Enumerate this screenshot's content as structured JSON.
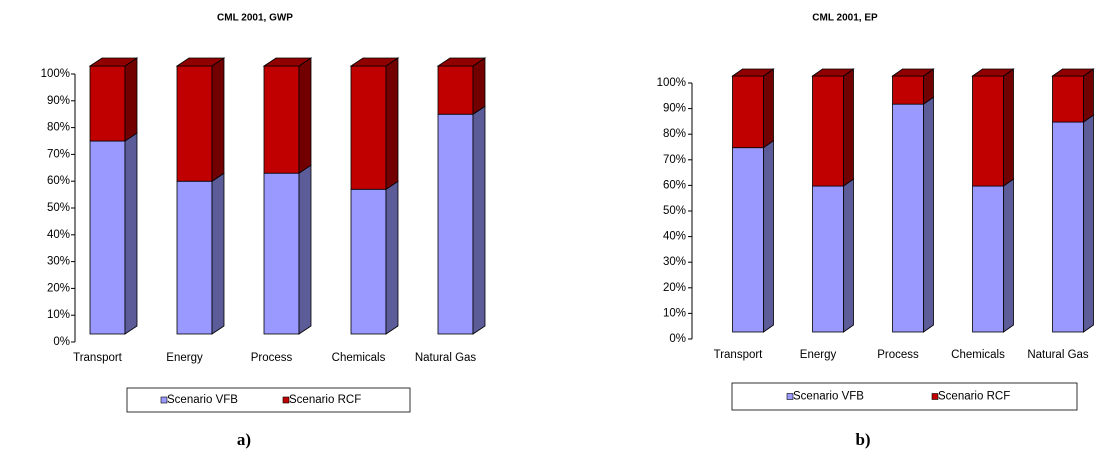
{
  "chart_data": [
    {
      "type": "bar",
      "stacked": true,
      "title": "CML 2001, GWP",
      "caption": "a)",
      "categories": [
        "Transport",
        "Energy",
        "Process",
        "Chemicals",
        "Natural Gas"
      ],
      "series": [
        {
          "name": "Scenario VFB",
          "color": "#9999ff",
          "values": [
            72,
            57,
            60,
            54,
            82
          ]
        },
        {
          "name": "Scenario RCF",
          "color": "#c00000",
          "values": [
            28,
            43,
            40,
            46,
            18
          ]
        }
      ],
      "ylim": [
        0,
        100
      ],
      "yticks": [
        {
          "value": 0,
          "label": "0%"
        },
        {
          "value": 10,
          "label": "10%"
        },
        {
          "value": 20,
          "label": "20%"
        },
        {
          "value": 30,
          "label": "30%"
        },
        {
          "value": 40,
          "label": "40%"
        },
        {
          "value": 50,
          "label": "50%"
        },
        {
          "value": 60,
          "label": "60%"
        },
        {
          "value": 70,
          "label": "70%"
        },
        {
          "value": 80,
          "label": "80%"
        },
        {
          "value": 90,
          "label": "90%"
        },
        {
          "value": 100,
          "label": "100%"
        }
      ],
      "legend": "bottom"
    },
    {
      "type": "bar",
      "stacked": true,
      "title": "CML 2001, EP",
      "caption": "b)",
      "categories": [
        "Transport",
        "Energy",
        "Process",
        "Chemicals",
        "Natural Gas"
      ],
      "series": [
        {
          "name": "Scenario VFB",
          "color": "#9999ff",
          "values": [
            72,
            57,
            89,
            57,
            82
          ]
        },
        {
          "name": "Scenario RCF",
          "color": "#c00000",
          "values": [
            28,
            43,
            11,
            43,
            18
          ]
        }
      ],
      "ylim": [
        0,
        100
      ],
      "yticks": [
        {
          "value": 0,
          "label": "0%"
        },
        {
          "value": 10,
          "label": "10%"
        },
        {
          "value": 20,
          "label": "20%"
        },
        {
          "value": 30,
          "label": "30%"
        },
        {
          "value": 40,
          "label": "40%"
        },
        {
          "value": 50,
          "label": "50%"
        },
        {
          "value": 60,
          "label": "60%"
        },
        {
          "value": 70,
          "label": "70%"
        },
        {
          "value": 80,
          "label": "80%"
        },
        {
          "value": 90,
          "label": "90%"
        },
        {
          "value": 100,
          "label": "100%"
        }
      ],
      "legend": "bottom"
    }
  ]
}
